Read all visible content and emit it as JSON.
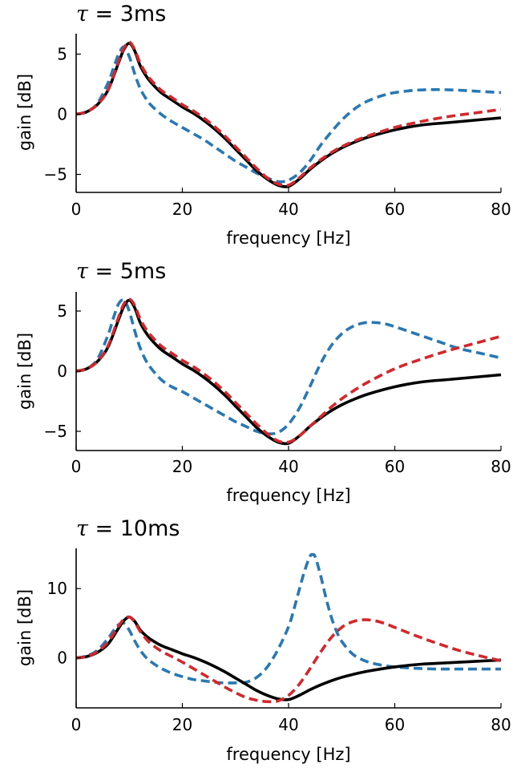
{
  "colors": {
    "exact": "#000000",
    "dashed_blue": "#2878b4",
    "dashed_red": "#d2282c"
  },
  "chart_data": [
    {
      "type": "line",
      "title": "τ = 3ms",
      "xlabel": "frequency [Hz]",
      "ylabel": "gain [dB]",
      "xlim": [
        0,
        80
      ],
      "ylim": [
        -6.5,
        6.7
      ],
      "xticks": [
        0,
        20,
        40,
        60,
        80
      ],
      "yticks": [
        -5,
        0,
        5
      ],
      "ytick_labels": [
        "−5",
        "0",
        "5"
      ],
      "grid": false,
      "series": [
        {
          "style": "solid",
          "color": "#000000",
          "x": [
            0,
            2,
            4,
            6,
            8,
            9,
            10,
            11,
            12,
            13,
            14,
            16,
            18,
            20,
            22,
            24,
            26,
            28,
            30,
            32,
            34,
            36,
            38,
            40,
            42,
            44,
            46,
            48,
            50,
            52,
            55,
            60,
            65,
            70,
            75,
            80
          ],
          "y": [
            0,
            0.2,
            0.8,
            2.0,
            4.3,
            5.4,
            5.9,
            5.3,
            4.1,
            3.3,
            2.7,
            1.8,
            1.2,
            0.6,
            0.1,
            -0.5,
            -1.2,
            -2.0,
            -2.9,
            -3.8,
            -4.7,
            -5.4,
            -5.9,
            -6.0,
            -5.4,
            -4.6,
            -3.9,
            -3.3,
            -2.8,
            -2.4,
            -1.9,
            -1.3,
            -0.9,
            -0.7,
            -0.5,
            -0.3
          ]
        },
        {
          "style": "dashed",
          "color": "#2878b4",
          "x": [
            0,
            2,
            4,
            6,
            7,
            8,
            9,
            10,
            11,
            12,
            13,
            14,
            16,
            18,
            20,
            22,
            24,
            26,
            28,
            30,
            32,
            34,
            36,
            38,
            39,
            40,
            42,
            44,
            46,
            48,
            50,
            52,
            54,
            56,
            58,
            60,
            64,
            68,
            72,
            76,
            80
          ],
          "y": [
            0,
            0.2,
            0.9,
            2.6,
            3.8,
            5.0,
            5.6,
            4.8,
            3.4,
            2.2,
            1.4,
            0.8,
            0.0,
            -0.6,
            -1.1,
            -1.6,
            -2.1,
            -2.7,
            -3.3,
            -3.9,
            -4.4,
            -4.9,
            -5.3,
            -5.6,
            -5.6,
            -5.5,
            -4.9,
            -3.9,
            -2.6,
            -1.5,
            -0.5,
            0.3,
            0.9,
            1.3,
            1.6,
            1.8,
            2.0,
            2.05,
            2.0,
            1.9,
            1.8
          ]
        },
        {
          "style": "dashed",
          "color": "#d2282c",
          "x": [
            0,
            2,
            4,
            6,
            8,
            9,
            10,
            11,
            12,
            13,
            14,
            16,
            18,
            20,
            22,
            24,
            26,
            28,
            30,
            32,
            34,
            36,
            38,
            40,
            42,
            44,
            46,
            48,
            50,
            52,
            55,
            60,
            65,
            70,
            75,
            80
          ],
          "y": [
            0,
            0.2,
            0.8,
            2.0,
            4.4,
            5.5,
            6.0,
            5.4,
            4.3,
            3.5,
            2.9,
            2.0,
            1.4,
            0.8,
            0.3,
            -0.3,
            -1.0,
            -1.8,
            -2.7,
            -3.6,
            -4.5,
            -5.3,
            -5.8,
            -5.9,
            -5.3,
            -4.5,
            -3.8,
            -3.2,
            -2.7,
            -2.3,
            -1.8,
            -1.1,
            -0.6,
            -0.2,
            0.1,
            0.4
          ]
        }
      ]
    },
    {
      "type": "line",
      "title": "τ = 5ms",
      "xlabel": "frequency [Hz]",
      "ylabel": "gain [dB]",
      "xlim": [
        0,
        80
      ],
      "ylim": [
        -6.6,
        6.6
      ],
      "xticks": [
        0,
        20,
        40,
        60,
        80
      ],
      "yticks": [
        -5,
        0,
        5
      ],
      "ytick_labels": [
        "−5",
        "0",
        "5"
      ],
      "grid": false,
      "series": [
        {
          "style": "solid",
          "color": "#000000",
          "x": [
            0,
            2,
            4,
            6,
            8,
            9,
            10,
            11,
            12,
            13,
            14,
            16,
            18,
            20,
            22,
            24,
            26,
            28,
            30,
            32,
            34,
            36,
            38,
            40,
            42,
            44,
            46,
            48,
            50,
            52,
            55,
            60,
            65,
            70,
            75,
            80
          ],
          "y": [
            0,
            0.2,
            0.8,
            2.0,
            4.3,
            5.4,
            5.9,
            5.3,
            4.1,
            3.3,
            2.7,
            1.8,
            1.2,
            0.6,
            0.1,
            -0.5,
            -1.2,
            -2.0,
            -2.9,
            -3.8,
            -4.7,
            -5.4,
            -5.9,
            -6.0,
            -5.4,
            -4.6,
            -3.9,
            -3.3,
            -2.8,
            -2.4,
            -1.9,
            -1.3,
            -0.9,
            -0.7,
            -0.5,
            -0.3
          ]
        },
        {
          "style": "dashed",
          "color": "#2878b4",
          "x": [
            0,
            2,
            4,
            6,
            7,
            8,
            9,
            10,
            11,
            12,
            13,
            14,
            16,
            18,
            20,
            22,
            24,
            26,
            28,
            30,
            32,
            34,
            36,
            38,
            40,
            42,
            44,
            46,
            48,
            50,
            52,
            54,
            56,
            58,
            60,
            64,
            68,
            72,
            76,
            80
          ],
          "y": [
            0,
            0.2,
            1.0,
            3.0,
            4.4,
            5.6,
            5.9,
            5.0,
            3.4,
            2.0,
            1.0,
            0.3,
            -0.7,
            -1.3,
            -1.7,
            -2.2,
            -2.7,
            -3.2,
            -3.7,
            -4.2,
            -4.6,
            -5.0,
            -5.2,
            -5.1,
            -4.4,
            -3.1,
            -1.3,
            0.6,
            2.1,
            3.1,
            3.7,
            4.0,
            4.05,
            3.95,
            3.7,
            3.1,
            2.5,
            1.9,
            1.5,
            1.1
          ]
        },
        {
          "style": "dashed",
          "color": "#d2282c",
          "x": [
            0,
            2,
            4,
            6,
            8,
            9,
            10,
            11,
            12,
            13,
            14,
            16,
            18,
            20,
            22,
            24,
            26,
            28,
            30,
            32,
            34,
            36,
            38,
            40,
            42,
            44,
            46,
            48,
            50,
            52,
            55,
            60,
            65,
            70,
            75,
            80
          ],
          "y": [
            0,
            0.2,
            0.8,
            2.1,
            4.5,
            5.6,
            6.0,
            5.5,
            4.4,
            3.6,
            3.0,
            2.1,
            1.5,
            0.9,
            0.4,
            -0.2,
            -0.9,
            -1.7,
            -2.6,
            -3.5,
            -4.4,
            -5.2,
            -5.8,
            -5.9,
            -5.4,
            -4.6,
            -3.8,
            -3.0,
            -2.3,
            -1.7,
            -0.9,
            0.2,
            1.0,
            1.7,
            2.3,
            2.9
          ]
        }
      ]
    },
    {
      "type": "line",
      "title": "τ = 10ms",
      "xlabel": "frequency [Hz]",
      "ylabel": "gain [dB]",
      "xlim": [
        0,
        80
      ],
      "ylim": [
        -7.2,
        15.8
      ],
      "xticks": [
        0,
        20,
        40,
        60,
        80
      ],
      "yticks": [
        0,
        10
      ],
      "ytick_labels": [
        "0",
        "10"
      ],
      "grid": false,
      "series": [
        {
          "style": "solid",
          "color": "#000000",
          "x": [
            0,
            2,
            4,
            6,
            8,
            9,
            10,
            11,
            12,
            13,
            14,
            16,
            18,
            20,
            22,
            24,
            26,
            28,
            30,
            32,
            34,
            36,
            38,
            40,
            42,
            44,
            46,
            48,
            50,
            52,
            55,
            60,
            65,
            70,
            75,
            80
          ],
          "y": [
            0,
            0.2,
            0.8,
            2.0,
            4.3,
            5.4,
            5.9,
            5.3,
            4.1,
            3.3,
            2.7,
            1.8,
            1.2,
            0.6,
            0.1,
            -0.5,
            -1.2,
            -2.0,
            -2.9,
            -3.8,
            -4.7,
            -5.4,
            -5.9,
            -6.0,
            -5.4,
            -4.6,
            -3.9,
            -3.3,
            -2.8,
            -2.4,
            -1.9,
            -1.3,
            -0.9,
            -0.7,
            -0.5,
            -0.3
          ]
        },
        {
          "style": "dashed",
          "color": "#2878b4",
          "x": [
            0,
            2,
            4,
            6,
            7,
            8,
            9,
            10,
            11,
            12,
            13,
            14,
            16,
            18,
            20,
            22,
            24,
            26,
            28,
            30,
            32,
            34,
            36,
            38,
            40,
            41,
            42,
            43,
            44,
            44.5,
            45,
            46,
            47,
            48,
            49,
            50,
            52,
            54,
            56,
            58,
            60,
            64,
            68,
            72,
            76,
            80
          ],
          "y": [
            0,
            0.3,
            1.1,
            2.8,
            3.9,
            4.8,
            5.0,
            4.0,
            2.5,
            1.2,
            0.2,
            -0.5,
            -1.5,
            -2.2,
            -2.7,
            -3.1,
            -3.3,
            -3.5,
            -3.6,
            -3.6,
            -3.5,
            -2.8,
            -1.3,
            1.2,
            4.5,
            7.0,
            9.8,
            12.5,
            14.6,
            14.9,
            14.6,
            12.0,
            8.8,
            6.0,
            3.9,
            2.4,
            0.6,
            -0.3,
            -0.8,
            -1.1,
            -1.3,
            -1.5,
            -1.6,
            -1.6,
            -1.6,
            -1.6
          ]
        },
        {
          "style": "dashed",
          "color": "#d2282c",
          "x": [
            0,
            2,
            4,
            6,
            8,
            9,
            10,
            11,
            12,
            13,
            14,
            16,
            18,
            20,
            22,
            24,
            26,
            28,
            30,
            32,
            34,
            36,
            38,
            40,
            42,
            44,
            46,
            48,
            50,
            52,
            54,
            56,
            58,
            60,
            64,
            68,
            72,
            76,
            80
          ],
          "y": [
            0,
            0.2,
            0.9,
            2.3,
            4.6,
            5.6,
            5.9,
            5.2,
            3.9,
            2.9,
            2.1,
            1.0,
            0.2,
            -0.6,
            -1.5,
            -2.4,
            -3.3,
            -4.2,
            -5.0,
            -5.7,
            -6.1,
            -6.3,
            -6.2,
            -5.4,
            -3.8,
            -1.6,
            0.8,
            2.9,
            4.4,
            5.2,
            5.5,
            5.4,
            5.0,
            4.4,
            3.2,
            2.1,
            1.1,
            0.3,
            -0.4
          ]
        }
      ]
    }
  ]
}
